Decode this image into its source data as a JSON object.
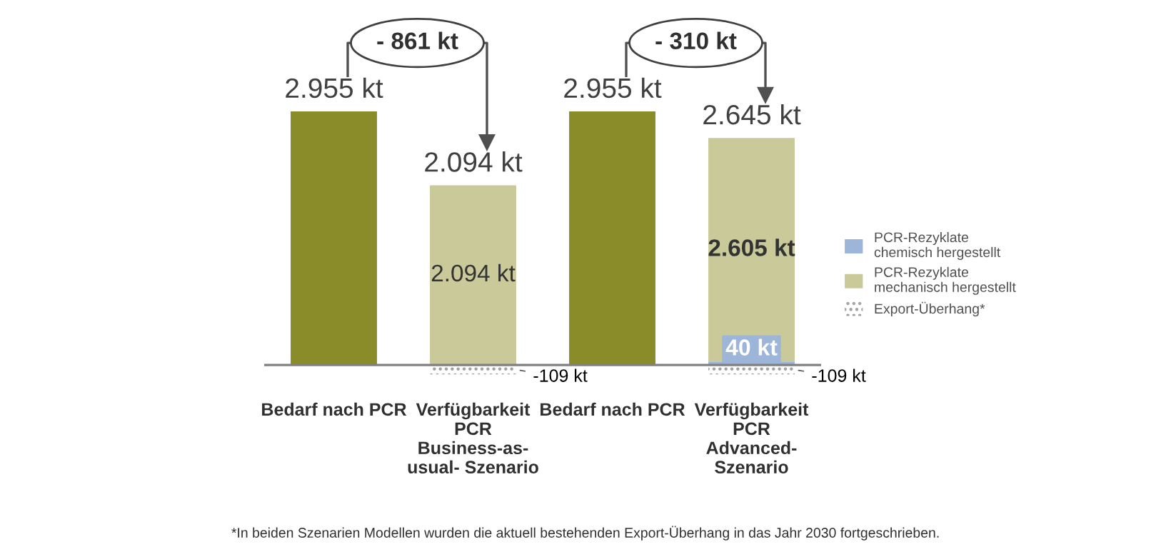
{
  "chart_data": {
    "type": "bar",
    "stacked": true,
    "categories": [
      "Bedarf nach PCR",
      "Verfügbarkeit\nPCR\nBusiness-as-\nusual- Szenario",
      "Bedarf nach PCR",
      "Verfügbarkeit\nPCR\nAdvanced-\nSzenario"
    ],
    "series": [
      {
        "color": "#8a8b29",
        "values": [
          2955,
          null,
          2955,
          null
        ],
        "value_labels": [
          "2.955 kt",
          null,
          "2.955 kt",
          null
        ]
      },
      {
        "name": "PCR-Rezyklate\nchemisch hergestellt",
        "color": "#9db5d9",
        "values": [
          null,
          null,
          null,
          40
        ],
        "value_labels": [
          null,
          null,
          null,
          "40 kt"
        ]
      },
      {
        "name": "PCR-Rezyklate\nmechanisch hergestellt",
        "color": "#c9c99a",
        "values": [
          null,
          2094,
          null,
          2605
        ],
        "value_labels": [
          null,
          "2.094 kt",
          null,
          "2.605 kt"
        ]
      },
      {
        "name": "Export-Überhang*",
        "color": "#a0a0a0",
        "values": [
          null,
          -109,
          null,
          -109
        ],
        "value_labels": [
          null,
          "-109 kt",
          null,
          "-109 kt"
        ]
      }
    ],
    "annotations": [
      {
        "text": "2.094 kt",
        "x": "Verfügbarkeit\nPCR\nBusiness-as-\nusual- Szenario",
        "y": 2094
      },
      {
        "text": "2.645 kt",
        "x": "Verfügbarkeit\nPCR\nAdvanced-\nSzenario",
        "y": 2645
      },
      "- 861 kt",
      "- 310 kt",
      "*In beiden Szenarien Modellen wurden die aktuell bestehenden Export-Überhang in das Jahr 2030 fortgeschrieben."
    ],
    "tick_labels": "x",
    "legend": "right",
    "grid": false
  }
}
